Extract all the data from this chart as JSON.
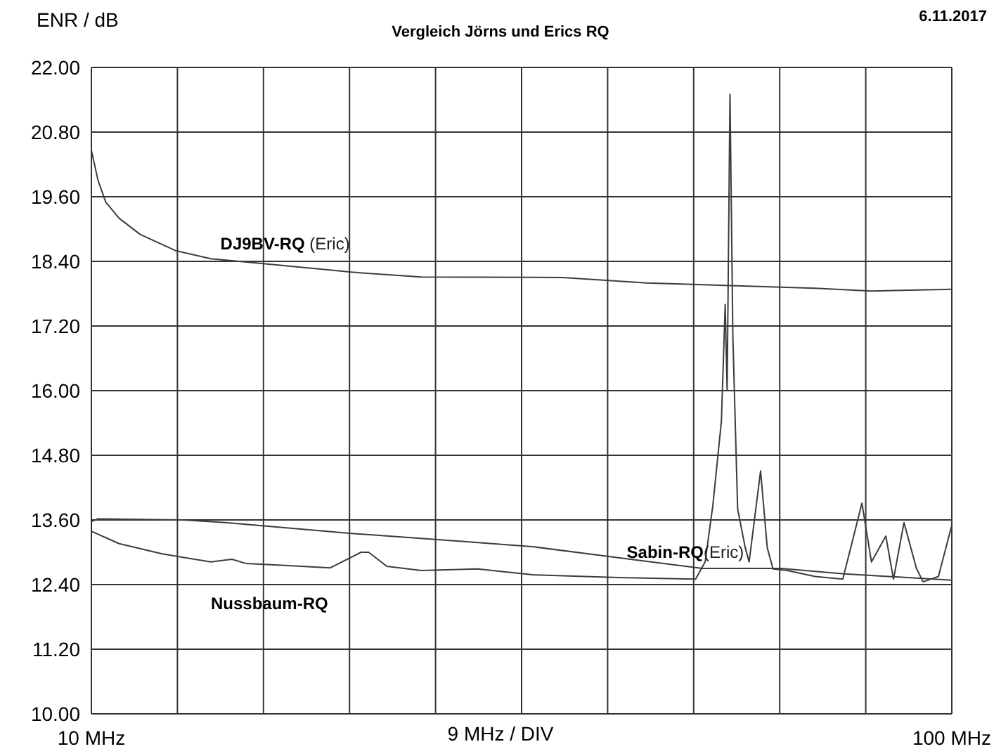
{
  "chart_data": {
    "type": "line",
    "title": "Vergleich Jörns und Erics RQ",
    "ylabel": "ENR / dB",
    "xlabel": "9 MHz / DIV",
    "annotations": [
      "6.11.2017"
    ],
    "xlim": [
      10,
      100
    ],
    "xticks": [
      {
        "value": 10,
        "label": "10 MHz"
      },
      {
        "value": 19,
        "label": null
      },
      {
        "value": 28,
        "label": null
      },
      {
        "value": 37,
        "label": null
      },
      {
        "value": 46,
        "label": null
      },
      {
        "value": 55,
        "label": null
      },
      {
        "value": 64,
        "label": null
      },
      {
        "value": 73,
        "label": null
      },
      {
        "value": 82,
        "label": null
      },
      {
        "value": 91,
        "label": null
      },
      {
        "value": 100,
        "label": "100 MHz"
      }
    ],
    "ylim": [
      10,
      22
    ],
    "yticks": [
      {
        "value": 10,
        "label": "10.00"
      },
      {
        "value": 11.2,
        "label": "11.20"
      },
      {
        "value": 12.4,
        "label": "12.40"
      },
      {
        "value": 13.6,
        "label": "13.60"
      },
      {
        "value": 14.8,
        "label": "14.80"
      },
      {
        "value": 16,
        "label": "16.00"
      },
      {
        "value": 17.2,
        "label": "17.20"
      },
      {
        "value": 18.4,
        "label": "18.40"
      },
      {
        "value": 19.6,
        "label": "19.60"
      },
      {
        "value": 20.8,
        "label": "20.80"
      },
      {
        "value": 22,
        "label": "22.00"
      }
    ],
    "grid": true,
    "legend": false,
    "marker": "none",
    "line_style": "solid",
    "series": [
      {
        "name": "DJ9BV-RQ (Eric)",
        "color": "#3c3c3c",
        "x": [
          10,
          10.7,
          11.5,
          12.9,
          15.1,
          18.8,
          22.5,
          28.4,
          37.2,
          44.5,
          59.3,
          68.1,
          76.9,
          85.7,
          91.6,
          100
        ],
        "values": [
          20.46,
          19.9,
          19.5,
          19.2,
          18.9,
          18.6,
          18.45,
          18.35,
          18.2,
          18.11,
          18.1,
          18.0,
          17.95,
          17.9,
          17.85,
          17.88
        ]
      },
      {
        "name": "Sabin-RQ(Eric)",
        "color": "#3c3c3c",
        "x": [
          10,
          10.7,
          19.6,
          24.0,
          37.2,
          49.0,
          56.3,
          65.1,
          73.9,
          82.1,
          88.7,
          100
        ],
        "values": [
          13.57,
          13.62,
          13.6,
          13.55,
          13.35,
          13.2,
          13.1,
          12.9,
          12.7,
          12.7,
          12.6,
          12.48
        ]
      },
      {
        "name": "Nussbaum-RQ",
        "color": "#3c3c3c",
        "x": [
          10,
          12.9,
          17.4,
          22.5,
          24.7,
          26.2,
          29.9,
          35.0,
          38.2,
          39.0,
          40.9,
          44.5,
          50.4,
          56.3,
          65.1,
          73.2,
          74.2,
          75.0,
          75.9,
          76.3,
          76.5,
          76.8,
          77.1,
          77.6,
          78.4,
          78.8,
          80.0,
          80.7,
          81.3,
          82.8,
          85.7,
          88.6,
          90.6,
          91.6,
          93.1,
          93.9,
          95.0,
          96.3,
          97.0,
          98.6,
          100
        ],
        "values": [
          13.39,
          13.16,
          12.97,
          12.82,
          12.87,
          12.79,
          12.76,
          12.71,
          13.0,
          13.0,
          12.74,
          12.66,
          12.69,
          12.58,
          12.53,
          12.5,
          12.82,
          13.86,
          15.43,
          17.6,
          16.0,
          21.5,
          17.0,
          13.8,
          13.08,
          12.82,
          14.51,
          13.08,
          12.69,
          12.66,
          12.55,
          12.5,
          13.91,
          12.82,
          13.3,
          12.5,
          13.55,
          12.7,
          12.45,
          12.55,
          13.5
        ]
      }
    ]
  }
}
